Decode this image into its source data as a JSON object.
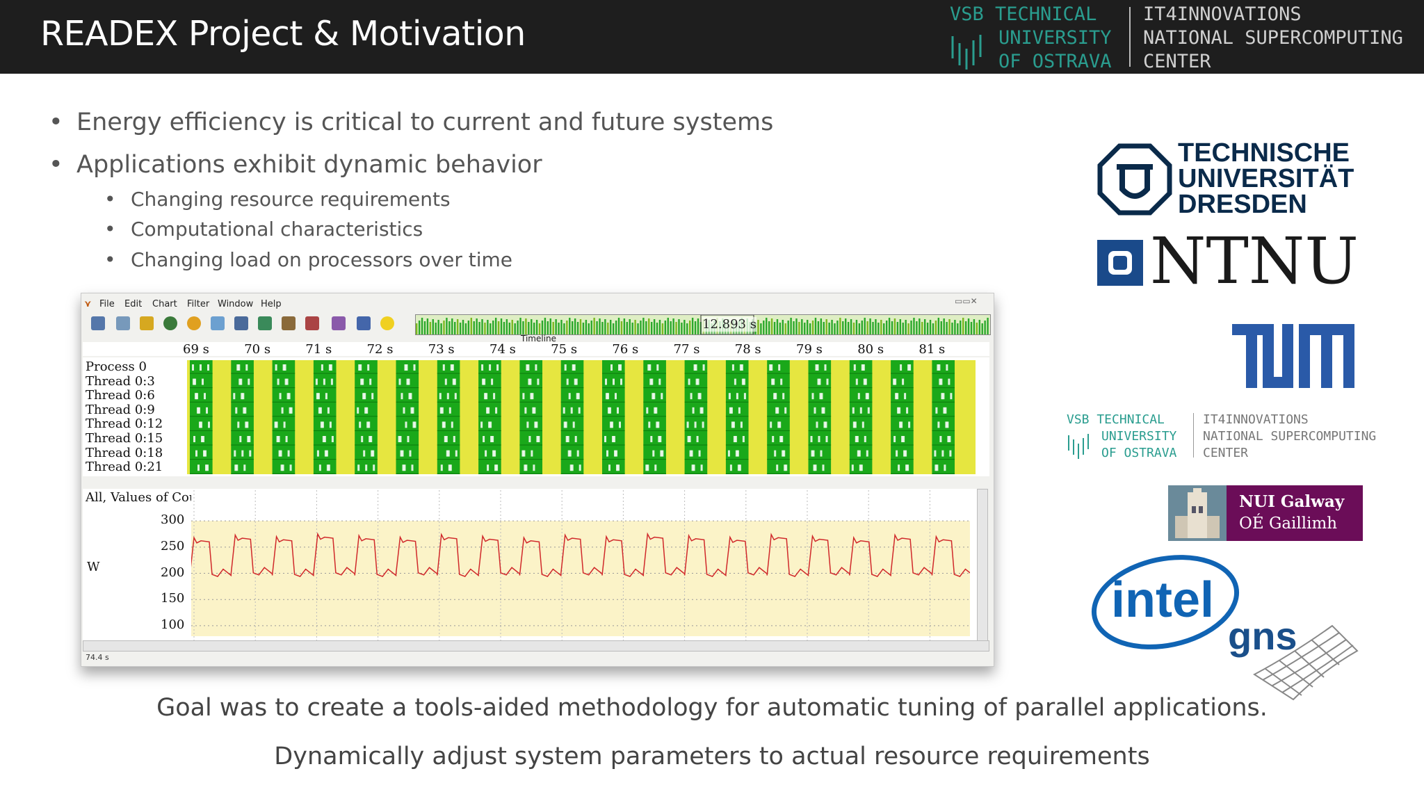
{
  "slide": {
    "title": "READEX Project & Motivation",
    "bullets": [
      "Energy efficiency is critical to current and future systems",
      "Applications exhibit dynamic behavior"
    ],
    "sub_bullets": [
      "Changing resource requirements",
      "Computational characteristics",
      "Changing load on processors over time"
    ],
    "goal_line": "Goal was to create a tools-aided methodology for automatic tuning of parallel applications.",
    "adjust_line": "Dynamically adjust system parameters to actual resource requirements"
  },
  "header_logo": {
    "left_lines": [
      "VSB TECHNICAL",
      "UNIVERSITY",
      "OF OSTRAVA"
    ],
    "right_lines": [
      "IT4INNOVATIONS",
      "NATIONAL SUPERCOMPUTING",
      "CENTER"
    ]
  },
  "vampir": {
    "menu": [
      "File",
      "Edit",
      "Chart",
      "Filter",
      "Window",
      "Help"
    ],
    "timeline_label": "Timeline",
    "timeline_marker": "12.893 s",
    "ruler_ticks": [
      "69 s",
      "70 s",
      "71 s",
      "72 s",
      "73 s",
      "74 s",
      "75 s",
      "76 s",
      "77 s",
      "78 s",
      "79 s",
      "80 s",
      "81 s"
    ],
    "processes": [
      "Process 0",
      "Thread 0:3",
      "Thread 0:6",
      "Thread 0:9",
      "Thread 0:12",
      "Thread 0:15",
      "Thread 0:18",
      "Thread 0:21"
    ],
    "counter_title": "All, Values of Counter \"killamook/watts\" over Time",
    "y_unit": "W",
    "y_ticks": [
      "300",
      "250",
      "200",
      "150",
      "100"
    ],
    "status_time": "74.4 s",
    "colors": {
      "compute": "#1aa81a",
      "wait": "#e6e640",
      "power_line": "#d0282a",
      "fill": "#fbf3c8"
    }
  },
  "partner_logos": {
    "tud": [
      "TECHNISCHE",
      "UNIVERSITÄT",
      "DRESDEN"
    ],
    "ntnu": "NTNU",
    "vsb": {
      "left_lines": [
        "VSB TECHNICAL",
        "UNIVERSITY",
        "OF OSTRAVA"
      ],
      "right_lines": [
        "IT4INNOVATIONS",
        "NATIONAL SUPERCOMPUTING",
        "CENTER"
      ]
    },
    "nui": [
      "NUI Galway",
      "OÉ Gaillimh"
    ],
    "intel": "intel",
    "gns": "gns"
  }
}
